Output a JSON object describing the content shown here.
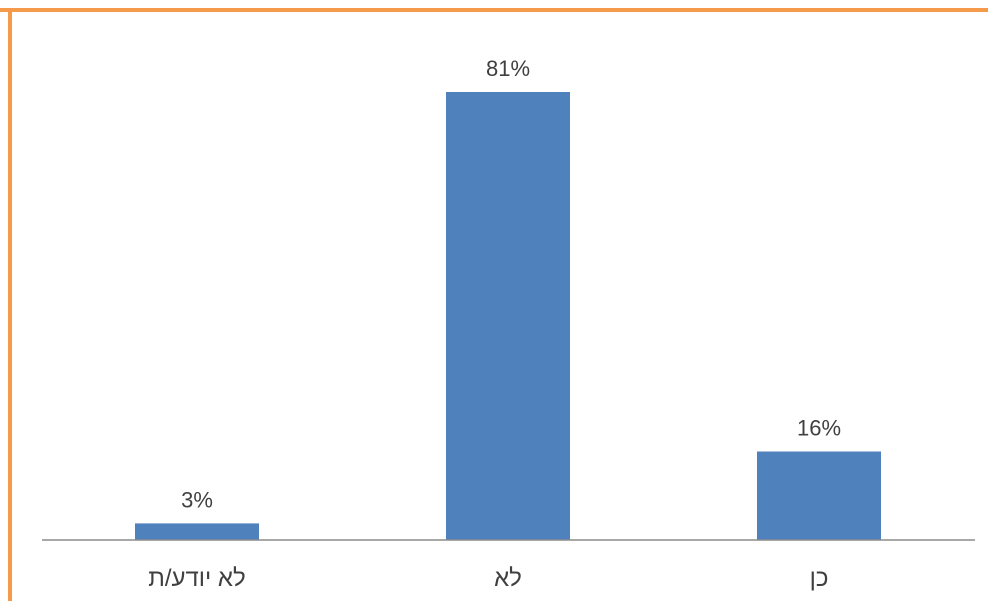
{
  "colors": {
    "frame": "#f59a4b",
    "bar": "#4f81bd",
    "axis": "#8c8c8c",
    "text": "#404040"
  },
  "chart_data": {
    "type": "bar",
    "categories": [
      "לא יודע/ת",
      "לא",
      "כן"
    ],
    "values": [
      3,
      81,
      16
    ],
    "data_labels": [
      "3%",
      "81%",
      "16%"
    ],
    "title": "",
    "xlabel": "",
    "ylabel": "",
    "ylim": [
      0,
      81
    ],
    "grid": false,
    "legend": "none"
  }
}
